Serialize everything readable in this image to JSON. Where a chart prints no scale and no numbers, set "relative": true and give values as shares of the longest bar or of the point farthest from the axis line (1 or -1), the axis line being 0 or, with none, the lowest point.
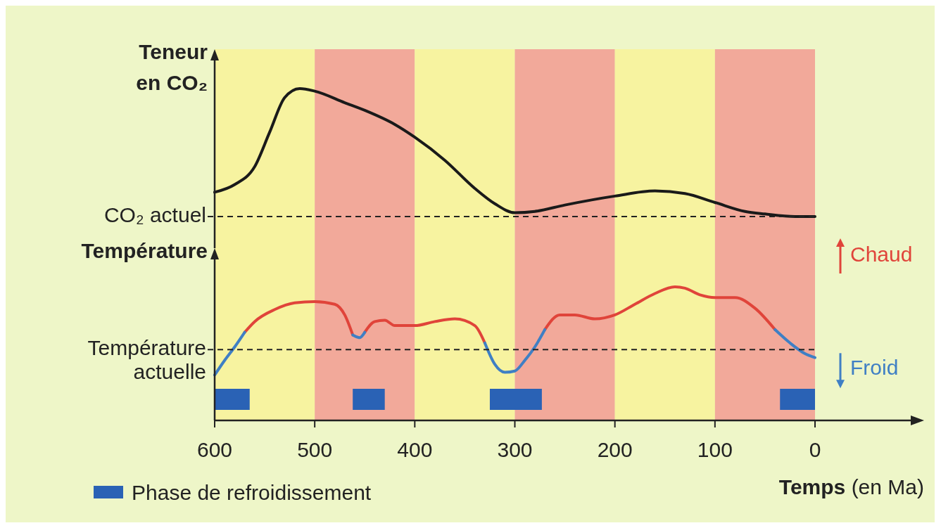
{
  "chart_data": [
    {
      "type": "line",
      "relative": true,
      "ylabel": "Teneur en CO₂",
      "xlim": [
        600,
        0
      ],
      "tick_labels": false,
      "marker": "none",
      "legend": false,
      "series": [
        {
          "color": "#1a1a1a",
          "x": [
            600,
            580,
            560,
            545,
            530,
            515,
            500,
            470,
            450,
            420,
            400,
            370,
            340,
            320,
            300,
            280,
            250,
            200,
            160,
            130,
            100,
            70,
            50,
            20,
            0
          ],
          "values": [
            0.19,
            0.25,
            0.39,
            0.66,
            0.93,
            1.0,
            0.98,
            0.89,
            0.83,
            0.72,
            0.62,
            0.44,
            0.22,
            0.1,
            0.03,
            0.04,
            0.09,
            0.16,
            0.2,
            0.18,
            0.11,
            0.04,
            0.02,
            0,
            0
          ]
        }
      ],
      "ref_lines": [
        {
          "axis": "y",
          "value": 0,
          "label": "CO₂ actuel",
          "line_style": "dashed"
        }
      ],
      "bands": [
        {
          "axis": "x",
          "from": 600,
          "to": 500,
          "color": "#f7f3a0"
        },
        {
          "axis": "x",
          "from": 500,
          "to": 400,
          "color": "#f2a99a"
        },
        {
          "axis": "x",
          "from": 400,
          "to": 300,
          "color": "#f7f3a0"
        },
        {
          "axis": "x",
          "from": 300,
          "to": 200,
          "color": "#f2a99a"
        },
        {
          "axis": "x",
          "from": 200,
          "to": 100,
          "color": "#f7f3a0"
        },
        {
          "axis": "x",
          "from": 100,
          "to": 0,
          "color": "#f2a99a"
        }
      ]
    },
    {
      "type": "line",
      "relative": true,
      "ylabel": "Température",
      "xlabel": "Temps (en Ma)",
      "xlim": [
        600,
        0
      ],
      "xticks": [
        600,
        500,
        400,
        300,
        200,
        100,
        0
      ],
      "tick_labels": "x",
      "marker": "none",
      "legend": "bottom left",
      "series": [
        {
          "color": "#e0443a",
          "x": [
            570,
            560,
            540,
            520,
            500,
            480,
            470,
            462,
            456,
            450,
            440,
            430,
            420,
            400,
            380,
            360,
            340,
            330,
            300,
            270,
            255,
            240,
            220,
            200,
            180,
            160,
            140,
            130,
            115,
            100,
            80,
            60,
            40
          ],
          "values": [
            0.66,
            0.74,
            0.83,
            0.88,
            0.89,
            0.87,
            0.79,
            0.64,
            null,
            0.66,
            0.74,
            0.75,
            0.71,
            0.71,
            0.74,
            0.76,
            0.71,
            0.58,
            null,
            0.68,
            0.79,
            0.79,
            0.76,
            0.79,
            0.87,
            0.95,
            1.0,
            0.99,
            0.94,
            0.92,
            0.92,
            0.84,
            0.68
          ]
        },
        {
          "color": "#3f7fc4",
          "x": [
            600,
            590,
            580,
            570,
            500,
            462,
            455,
            450,
            400,
            330,
            320,
            310,
            300,
            290,
            280,
            270,
            100,
            40,
            25,
            10,
            0
          ],
          "values": [
            0.34,
            0.45,
            0.55,
            0.66,
            null,
            0.64,
            0.62,
            0.66,
            null,
            0.58,
            0.42,
            0.36,
            0.37,
            0.45,
            0.55,
            0.68,
            null,
            0.68,
            0.58,
            0.5,
            0.47
          ]
        }
      ],
      "ref_lines": [
        {
          "axis": "y",
          "value": 0.53,
          "label": "Température actuelle",
          "line_style": "dashed"
        }
      ],
      "annotations": [
        "Chaud",
        "Froid"
      ],
      "bands": [
        {
          "axis": "x",
          "from": 600,
          "to": 500,
          "color": "#f7f3a0"
        },
        {
          "axis": "x",
          "from": 500,
          "to": 400,
          "color": "#f2a99a"
        },
        {
          "axis": "x",
          "from": 400,
          "to": 300,
          "color": "#f7f3a0"
        },
        {
          "axis": "x",
          "from": 300,
          "to": 200,
          "color": "#f2a99a"
        },
        {
          "axis": "x",
          "from": 200,
          "to": 100,
          "color": "#f7f3a0"
        },
        {
          "axis": "x",
          "from": 100,
          "to": 0,
          "color": "#f2a99a"
        },
        {
          "axis": "x",
          "from": 600,
          "to": 565,
          "color": "#2a62b5",
          "label": "Phase de refroidissement"
        },
        {
          "axis": "x",
          "from": 462,
          "to": 430,
          "color": "#2a62b5"
        },
        {
          "axis": "x",
          "from": 325,
          "to": 273,
          "color": "#2a62b5"
        },
        {
          "axis": "x",
          "from": 35,
          "to": 0,
          "color": "#2a62b5"
        }
      ]
    }
  ]
}
